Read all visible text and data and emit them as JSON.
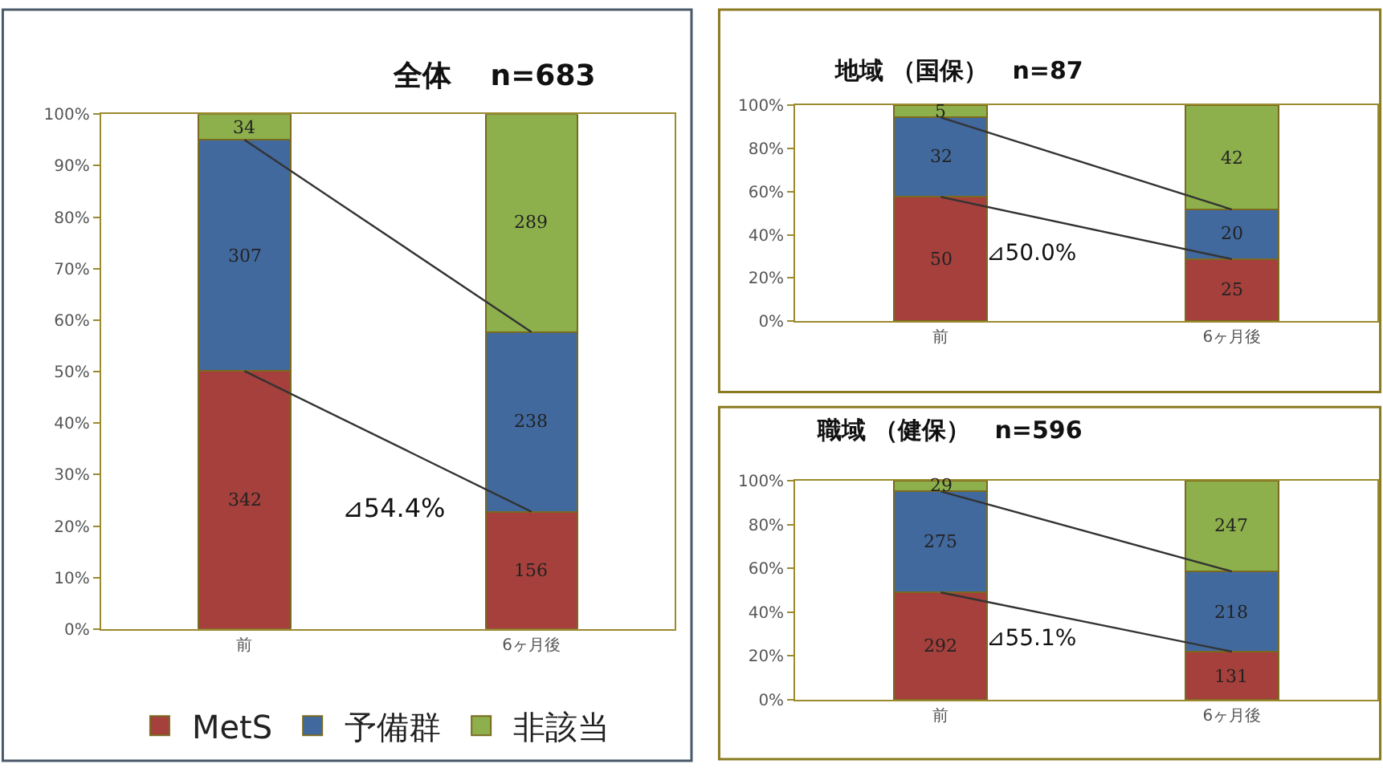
{
  "chart_data": [
    {
      "type": "bar",
      "title": "全体　 n=683",
      "categories": [
        "前",
        "6ヶ月後"
      ],
      "stacked": true,
      "legend": "bottom",
      "ylim": [
        0,
        100
      ],
      "yticks": [
        {
          "value": 0,
          "label": "0%"
        },
        {
          "value": 10,
          "label": "10%"
        },
        {
          "value": 20,
          "label": "20%"
        },
        {
          "value": 30,
          "label": "30%"
        },
        {
          "value": 40,
          "label": "40%"
        },
        {
          "value": 50,
          "label": "50%"
        },
        {
          "value": 60,
          "label": "60%"
        },
        {
          "value": 70,
          "label": "70%"
        },
        {
          "value": 80,
          "label": "80%"
        },
        {
          "value": 90,
          "label": "90%"
        },
        {
          "value": 100,
          "label": "100%"
        }
      ],
      "series": [
        {
          "type": "line",
          "color": "#333333",
          "values": [
            50.1,
            22.8
          ]
        },
        {
          "type": "line",
          "color": "#333333",
          "values": [
            95.0,
            57.7
          ]
        },
        {
          "name": "MetS",
          "color": "#a5403c",
          "values": [
            50.1,
            22.8
          ]
        },
        {
          "name": "予備群",
          "color": "#41699e",
          "values": [
            44.9,
            34.9
          ]
        },
        {
          "name": "非該当",
          "color": "#8db04c",
          "values": [
            5.0,
            42.3
          ]
        }
      ],
      "annotations": [
        "342",
        "156",
        "307",
        "238",
        "34",
        "289",
        "⊿54.4%"
      ]
    },
    {
      "type": "bar",
      "title": "地域 （国保）　n=87",
      "categories": [
        "前",
        "6ヶ月後"
      ],
      "stacked": true,
      "ylim": [
        0,
        100
      ],
      "yticks": [
        {
          "value": 0,
          "label": "0%"
        },
        {
          "value": 20,
          "label": "20%"
        },
        {
          "value": 40,
          "label": "40%"
        },
        {
          "value": 60,
          "label": "60%"
        },
        {
          "value": 80,
          "label": "80%"
        },
        {
          "value": 100,
          "label": "100%"
        }
      ],
      "series": [
        {
          "type": "line",
          "color": "#333333",
          "values": [
            57.5,
            28.7
          ]
        },
        {
          "type": "line",
          "color": "#333333",
          "values": [
            94.3,
            51.7
          ]
        },
        {
          "color": "#a5403c",
          "values": [
            57.5,
            28.7
          ]
        },
        {
          "color": "#41699e",
          "values": [
            36.8,
            23.0
          ]
        },
        {
          "color": "#8db04c",
          "values": [
            5.7,
            48.3
          ]
        }
      ],
      "annotations": [
        "50",
        "25",
        "32",
        "20",
        "5",
        "42",
        "⊿50.0%"
      ]
    },
    {
      "type": "bar",
      "title": "職域 （健保）　n=596",
      "categories": [
        "前",
        "6ヶ月後"
      ],
      "stacked": true,
      "ylim": [
        0,
        100
      ],
      "yticks": [
        {
          "value": 0,
          "label": "0%"
        },
        {
          "value": 20,
          "label": "20%"
        },
        {
          "value": 40,
          "label": "40%"
        },
        {
          "value": 60,
          "label": "60%"
        },
        {
          "value": 80,
          "label": "80%"
        },
        {
          "value": 100,
          "label": "100%"
        }
      ],
      "series": [
        {
          "type": "line",
          "color": "#333333",
          "values": [
            49.0,
            22.0
          ]
        },
        {
          "type": "line",
          "color": "#333333",
          "values": [
            95.1,
            58.6
          ]
        },
        {
          "color": "#a5403c",
          "values": [
            49.0,
            22.0
          ]
        },
        {
          "color": "#41699e",
          "values": [
            46.1,
            36.6
          ]
        },
        {
          "color": "#8db04c",
          "values": [
            4.9,
            41.4
          ]
        }
      ],
      "annotations": [
        "292",
        "131",
        "275",
        "218",
        "29",
        "247",
        "⊿55.1%"
      ]
    }
  ]
}
